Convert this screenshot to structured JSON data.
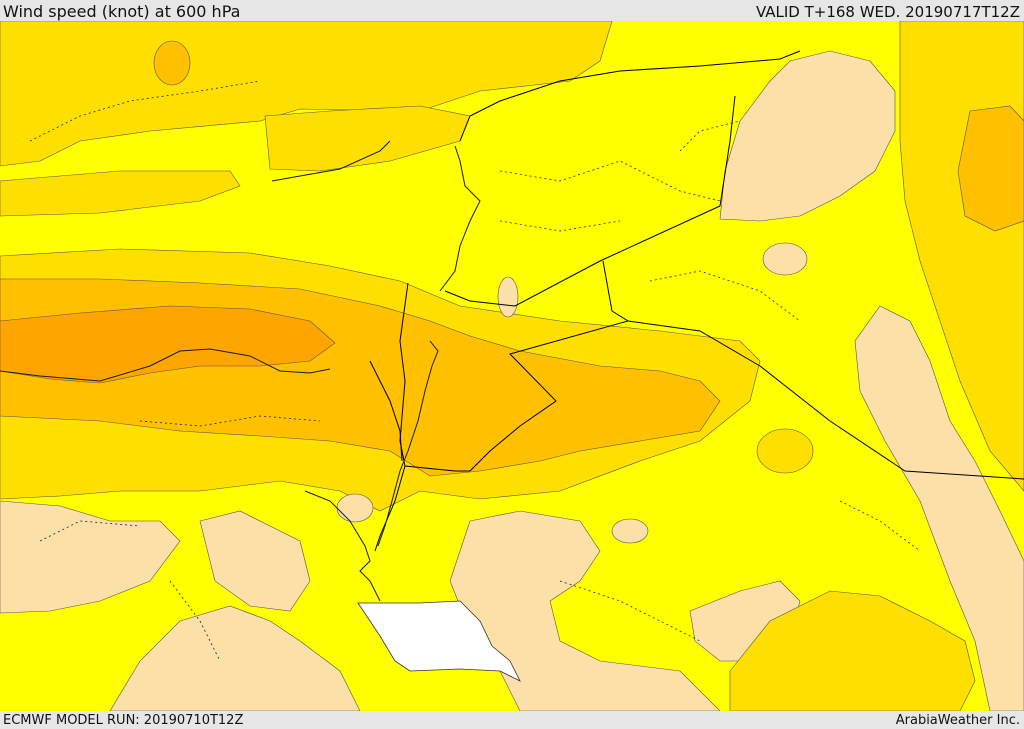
{
  "header": {
    "title": "Wind speed (knot) at 600 hPa",
    "valid": "VALID T+168 WED. 20190717T12Z"
  },
  "footer": {
    "model_run": "ECMWF MODEL RUN: 20190710T12Z",
    "credit": "ArabiaWeather Inc."
  },
  "colors": {
    "band_light": "#fde0a8",
    "band_yellow": "#ffff00",
    "band_gold": "#ffdf00",
    "band_amber": "#ffc000",
    "band_orange": "#ffa500",
    "no_data": "#ffffff",
    "borders": "#000000"
  }
}
